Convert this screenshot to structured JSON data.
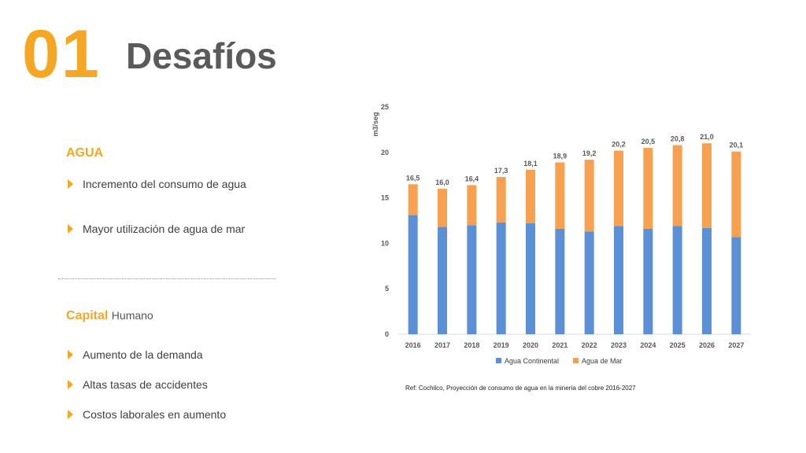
{
  "header": {
    "number": "01",
    "title": "Desafíos"
  },
  "agua": {
    "heading": "AGUA",
    "bullets": [
      "Incremento del consumo de agua",
      "Mayor utilización de agua de mar"
    ]
  },
  "capital": {
    "heading_strong": "Capital",
    "heading_rest": "Humano",
    "bullets": [
      "Aumento de la demanda",
      "Altas tasas de accidentes",
      "Costos laborales en aumento"
    ]
  },
  "reference": "Ref: Cochilco, Proyección de consumo de agua en la minería del cobre 2016-2027",
  "colors": {
    "accent": "#f5a623",
    "continental": "#5b8fd6",
    "mar": "#f7a150"
  },
  "chart_data": {
    "type": "bar",
    "stacked": true,
    "ylabel": "m3/seg",
    "ylim": [
      0,
      25
    ],
    "yticks": [
      0,
      5,
      10,
      15,
      20,
      25
    ],
    "ytick_labels": [
      "0",
      "5",
      "10",
      "15",
      "20",
      "25"
    ],
    "grid": false,
    "legend_position": "bottom",
    "categories": [
      "2016",
      "2017",
      "2018",
      "2019",
      "2020",
      "2021",
      "2022",
      "2023",
      "2024",
      "2025",
      "2026",
      "2027"
    ],
    "series": [
      {
        "name": "Agua Continental",
        "color": "#5b8fd6",
        "values": [
          13.1,
          11.8,
          12.0,
          12.3,
          12.2,
          11.6,
          11.3,
          11.9,
          11.6,
          11.9,
          11.7,
          10.7
        ]
      },
      {
        "name": "Agua de Mar",
        "color": "#f7a150",
        "values": [
          3.4,
          4.2,
          4.4,
          5.0,
          5.9,
          7.3,
          7.9,
          8.3,
          8.9,
          8.9,
          9.3,
          9.4
        ]
      }
    ],
    "totals_labels": [
      "16,5",
      "16,0",
      "16,4",
      "17,3",
      "18,1",
      "18,9",
      "19,2",
      "20,2",
      "20,5",
      "20,8",
      "21,0",
      "20,1"
    ],
    "totals": [
      16.5,
      16.0,
      16.4,
      17.3,
      18.1,
      18.9,
      19.2,
      20.2,
      20.5,
      20.8,
      21.0,
      20.1
    ]
  }
}
